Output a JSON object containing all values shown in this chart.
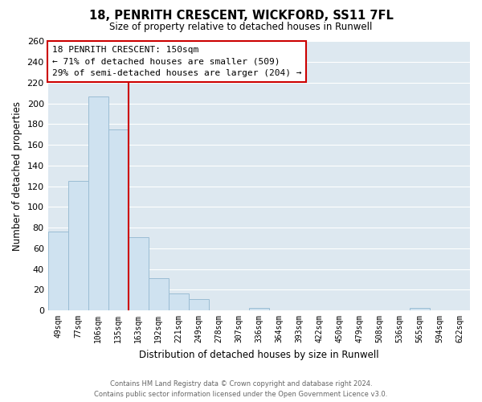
{
  "title": "18, PENRITH CRESCENT, WICKFORD, SS11 7FL",
  "subtitle": "Size of property relative to detached houses in Runwell",
  "xlabel": "Distribution of detached houses by size in Runwell",
  "ylabel": "Number of detached properties",
  "bar_color": "#cfe2f0",
  "bar_edge_color": "#9bbdd4",
  "marker_line_color": "#cc0000",
  "categories": [
    "49sqm",
    "77sqm",
    "106sqm",
    "135sqm",
    "163sqm",
    "192sqm",
    "221sqm",
    "249sqm",
    "278sqm",
    "307sqm",
    "336sqm",
    "364sqm",
    "393sqm",
    "422sqm",
    "450sqm",
    "479sqm",
    "508sqm",
    "536sqm",
    "565sqm",
    "594sqm",
    "622sqm"
  ],
  "values": [
    76,
    125,
    207,
    175,
    71,
    31,
    16,
    11,
    0,
    0,
    2,
    0,
    0,
    0,
    0,
    0,
    0,
    0,
    2,
    0,
    0
  ],
  "ylim": [
    0,
    260
  ],
  "yticks": [
    0,
    20,
    40,
    60,
    80,
    100,
    120,
    140,
    160,
    180,
    200,
    220,
    240,
    260
  ],
  "annotation_title": "18 PENRITH CRESCENT: 150sqm",
  "annotation_line1": "← 71% of detached houses are smaller (509)",
  "annotation_line2": "29% of semi-detached houses are larger (204) →",
  "annotation_box_color": "#ffffff",
  "annotation_box_edge": "#cc0000",
  "footer_line1": "Contains HM Land Registry data © Crown copyright and database right 2024.",
  "footer_line2": "Contains public sector information licensed under the Open Government Licence v3.0.",
  "background_color": "#ffffff",
  "plot_bg_color": "#dde8f0",
  "grid_color": "#ffffff",
  "marker_bin_index": 3
}
